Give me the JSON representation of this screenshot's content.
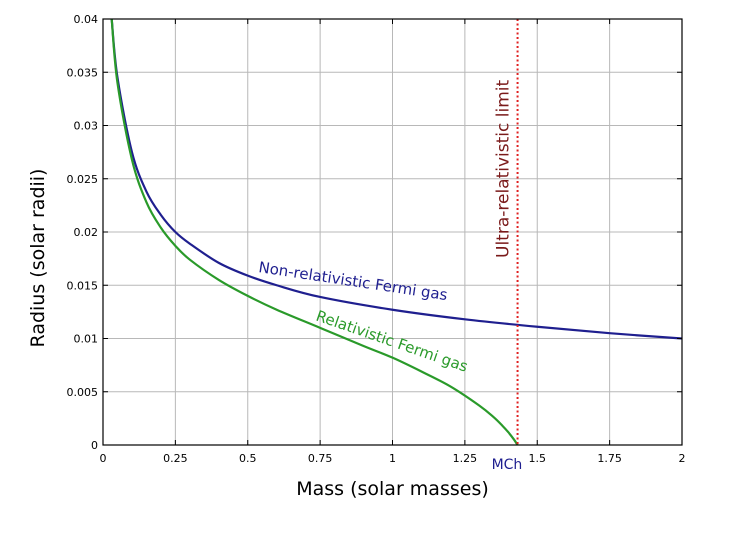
{
  "chart_data": {
    "type": "line",
    "xlabel": "Mass (solar masses)",
    "ylabel": "Radius (solar radii)",
    "xlim": [
      0,
      2
    ],
    "ylim": [
      0,
      0.04
    ],
    "x_ticks": [
      0,
      0.25,
      0.5,
      0.75,
      1,
      1.25,
      1.5,
      1.75,
      2
    ],
    "x_tick_labels": [
      "0",
      "0.25",
      "0.5",
      "0.75",
      "1",
      "1.25",
      "1.5",
      "1.75",
      "2"
    ],
    "y_ticks": [
      0,
      0.005,
      0.01,
      0.015,
      0.02,
      0.025,
      0.03,
      0.035,
      0.04
    ],
    "y_tick_labels": [
      "0",
      "0.005",
      "0.01",
      "0.015",
      "0.02",
      "0.025",
      "0.03",
      "0.035",
      "0.04"
    ],
    "grid": true,
    "series": [
      {
        "name": "Non-relativistic Fermi gas",
        "color": "#1f1f8f",
        "x": [
          0.03,
          0.05,
          0.1,
          0.15,
          0.2,
          0.25,
          0.3,
          0.4,
          0.5,
          0.6,
          0.75,
          1.0,
          1.25,
          1.5,
          1.75,
          2.0
        ],
        "y": [
          0.04,
          0.0345,
          0.0275,
          0.0238,
          0.0216,
          0.02,
          0.0189,
          0.0171,
          0.0159,
          0.015,
          0.0139,
          0.0127,
          0.0118,
          0.0111,
          0.0105,
          0.01
        ]
      },
      {
        "name": "Relativistic Fermi gas",
        "color": "#2a9a2a",
        "x": [
          0.03,
          0.05,
          0.1,
          0.15,
          0.2,
          0.25,
          0.3,
          0.4,
          0.5,
          0.6,
          0.75,
          0.9,
          1.0,
          1.1,
          1.2,
          1.3,
          1.35,
          1.38,
          1.4,
          1.42,
          1.432
        ],
        "y": [
          0.04,
          0.034,
          0.0268,
          0.0228,
          0.0204,
          0.0187,
          0.0174,
          0.0155,
          0.014,
          0.0127,
          0.011,
          0.0093,
          0.0082,
          0.0069,
          0.0055,
          0.0037,
          0.0026,
          0.0018,
          0.0012,
          0.0005,
          0.0
        ]
      }
    ],
    "annotations": {
      "limit_line_x": 1.432,
      "limit_label": "Ultra-relativistic limit",
      "limit_color": "#e02020",
      "limit_text_color": "#7a1a1a",
      "mch_label": "MCh",
      "nonrel_label": "Non-relativistic Fermi gas",
      "rel_label": "Relativistic Fermi gas"
    }
  }
}
